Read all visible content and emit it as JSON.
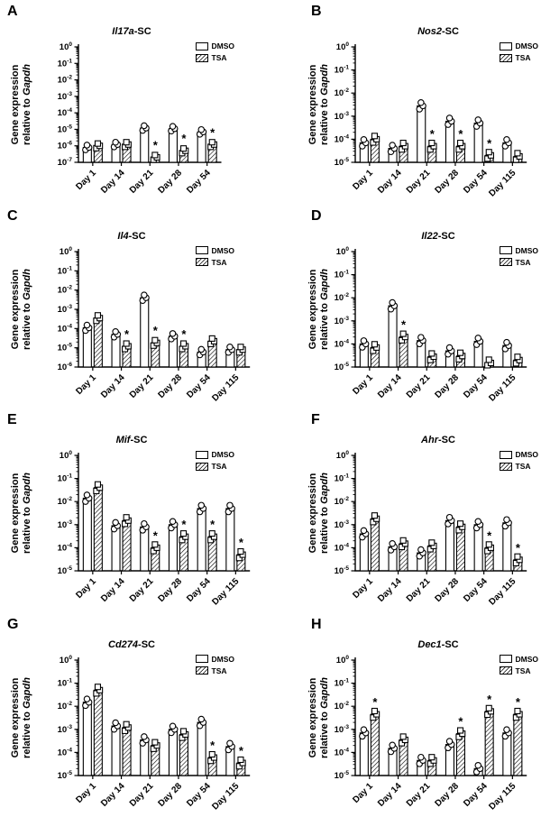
{
  "figure": {
    "ylabel_line1": "Gene expression",
    "ylabel_line2_prefix": "relative to ",
    "ylabel_line2_italic": "Gapdh",
    "legend": {
      "dmso": "DMSO",
      "tsa": "TSA"
    },
    "significance_symbol": "*",
    "colors": {
      "stroke": "#000000",
      "bar_fill": "#ffffff",
      "background": "#ffffff"
    },
    "markers": {
      "DMSO": "open-circle",
      "TSA": "open-square"
    },
    "point_multipliers": [
      0.72,
      1.0,
      1.38
    ]
  },
  "chart_data": [
    {
      "panel": "A",
      "type": "bar",
      "title_gene": "Il17a",
      "title_suffix": "-SC",
      "yscale": "log",
      "ymax_exp": 0,
      "ymin_exp": -7,
      "ylim": [
        1e-07,
        1
      ],
      "categories": [
        "Day 1",
        "Day 14",
        "Day 21",
        "Day 28",
        "Day 54"
      ],
      "series": [
        {
          "name": "DMSO",
          "values": [
            8e-07,
            1.2e-06,
            1.2e-05,
            1.1e-05,
            7e-06
          ]
        },
        {
          "name": "TSA",
          "values": [
            1e-06,
            1.2e-06,
            2e-07,
            5e-07,
            1.2e-06
          ]
        }
      ],
      "significant": [
        false,
        false,
        true,
        true,
        true
      ]
    },
    {
      "panel": "B",
      "type": "bar",
      "title_gene": "Nos2",
      "title_suffix": "-SC",
      "yscale": "log",
      "ymax_exp": 0,
      "ymin_exp": -5,
      "ylim": [
        1e-05,
        1
      ],
      "categories": [
        "Day 1",
        "Day 14",
        "Day 21",
        "Day 28",
        "Day 54",
        "Day 115"
      ],
      "series": [
        {
          "name": "DMSO",
          "values": [
            7e-05,
            4e-05,
            0.0028,
            0.0006,
            0.0005,
            7e-05
          ]
        },
        {
          "name": "TSA",
          "values": [
            0.0001,
            5e-05,
            5e-05,
            5e-05,
            2e-05,
            1.8e-05
          ]
        }
      ],
      "significant": [
        false,
        false,
        true,
        true,
        true,
        false
      ]
    },
    {
      "panel": "C",
      "type": "bar",
      "title_gene": "Il4",
      "title_suffix": "-SC",
      "yscale": "log",
      "ymax_exp": 0,
      "ymin_exp": -6,
      "ylim": [
        1e-06,
        1
      ],
      "categories": [
        "Day 1",
        "Day 14",
        "Day 21",
        "Day 28",
        "Day 54",
        "Day 115"
      ],
      "series": [
        {
          "name": "DMSO",
          "values": [
            0.00011,
            5e-05,
            0.004,
            4e-05,
            6e-06,
            8e-06
          ]
        },
        {
          "name": "TSA",
          "values": [
            0.00035,
            1.2e-05,
            1.8e-05,
            1.2e-05,
            2.2e-05,
            8e-06
          ]
        }
      ],
      "significant": [
        false,
        true,
        true,
        true,
        false,
        false
      ]
    },
    {
      "panel": "D",
      "type": "bar",
      "title_gene": "Il22",
      "title_suffix": "-SC",
      "yscale": "log",
      "ymax_exp": 0,
      "ymin_exp": -5,
      "ylim": [
        1e-05,
        1
      ],
      "categories": [
        "Day 1",
        "Day 14",
        "Day 21",
        "Day 28",
        "Day 54",
        "Day 115"
      ],
      "series": [
        {
          "name": "DMSO",
          "values": [
            0.0001,
            0.0045,
            0.00014,
            5e-05,
            0.00013,
            8.5e-05
          ]
        },
        {
          "name": "TSA",
          "values": [
            7e-05,
            0.0002,
            2.8e-05,
            3e-05,
            1.5e-05,
            2e-05
          ]
        }
      ],
      "significant": [
        false,
        true,
        false,
        false,
        false,
        false
      ]
    },
    {
      "panel": "E",
      "type": "bar",
      "title_gene": "Mif",
      "title_suffix": "-SC",
      "yscale": "log",
      "ymax_exp": 0,
      "ymin_exp": -5,
      "ylim": [
        1e-05,
        1
      ],
      "categories": [
        "Day 1",
        "Day 14",
        "Day 21",
        "Day 28",
        "Day 54",
        "Day 115"
      ],
      "series": [
        {
          "name": "DMSO",
          "values": [
            0.014,
            0.0009,
            0.0008,
            0.001,
            0.005,
            0.005
          ]
        },
        {
          "name": "TSA",
          "values": [
            0.04,
            0.0015,
            0.0001,
            0.0003,
            0.0003,
            5e-05
          ]
        }
      ],
      "significant": [
        false,
        false,
        true,
        true,
        true,
        true
      ]
    },
    {
      "panel": "F",
      "type": "bar",
      "title_gene": "Ahr",
      "title_suffix": "-SC",
      "yscale": "log",
      "ymax_exp": 0,
      "ymin_exp": -5,
      "ylim": [
        1e-05,
        1
      ],
      "categories": [
        "Day 1",
        "Day 14",
        "Day 21",
        "Day 28",
        "Day 54",
        "Day 115"
      ],
      "series": [
        {
          "name": "DMSO",
          "values": [
            0.0004,
            0.00011,
            6e-05,
            0.0015,
            0.001,
            0.0012
          ]
        },
        {
          "name": "TSA",
          "values": [
            0.0018,
            0.00015,
            0.00012,
            0.0008,
            0.0001,
            3e-05
          ]
        }
      ],
      "significant": [
        false,
        false,
        false,
        false,
        true,
        true
      ]
    },
    {
      "panel": "G",
      "type": "bar",
      "title_gene": "Cd274",
      "title_suffix": "-SC",
      "yscale": "log",
      "ymax_exp": 0,
      "ymin_exp": -5,
      "ylim": [
        1e-05,
        1
      ],
      "categories": [
        "Day 1",
        "Day 14",
        "Day 21",
        "Day 28",
        "Day 54",
        "Day 115"
      ],
      "series": [
        {
          "name": "DMSO",
          "values": [
            0.015,
            0.0014,
            0.00035,
            0.001,
            0.002,
            0.00018
          ]
        },
        {
          "name": "TSA",
          "values": [
            0.05,
            0.0012,
            0.0002,
            0.0006,
            6e-05,
            3.5e-05
          ]
        }
      ],
      "significant": [
        false,
        false,
        false,
        false,
        true,
        true
      ]
    },
    {
      "panel": "H",
      "type": "bar",
      "title_gene": "Dec1",
      "title_suffix": "-SC",
      "yscale": "log",
      "ymax_exp": 0,
      "ymin_exp": -5,
      "ylim": [
        1e-05,
        1
      ],
      "categories": [
        "Day 1",
        "Day 14",
        "Day 21",
        "Day 28",
        "Day 54",
        "Day 115"
      ],
      "series": [
        {
          "name": "DMSO",
          "values": [
            0.0007,
            0.00015,
            4.5e-05,
            0.00022,
            2e-05,
            0.0007
          ]
        },
        {
          "name": "TSA",
          "values": [
            0.0045,
            0.00035,
            4.5e-05,
            0.00065,
            0.006,
            0.0045
          ]
        }
      ],
      "significant": [
        true,
        false,
        false,
        true,
        true,
        true
      ]
    }
  ]
}
